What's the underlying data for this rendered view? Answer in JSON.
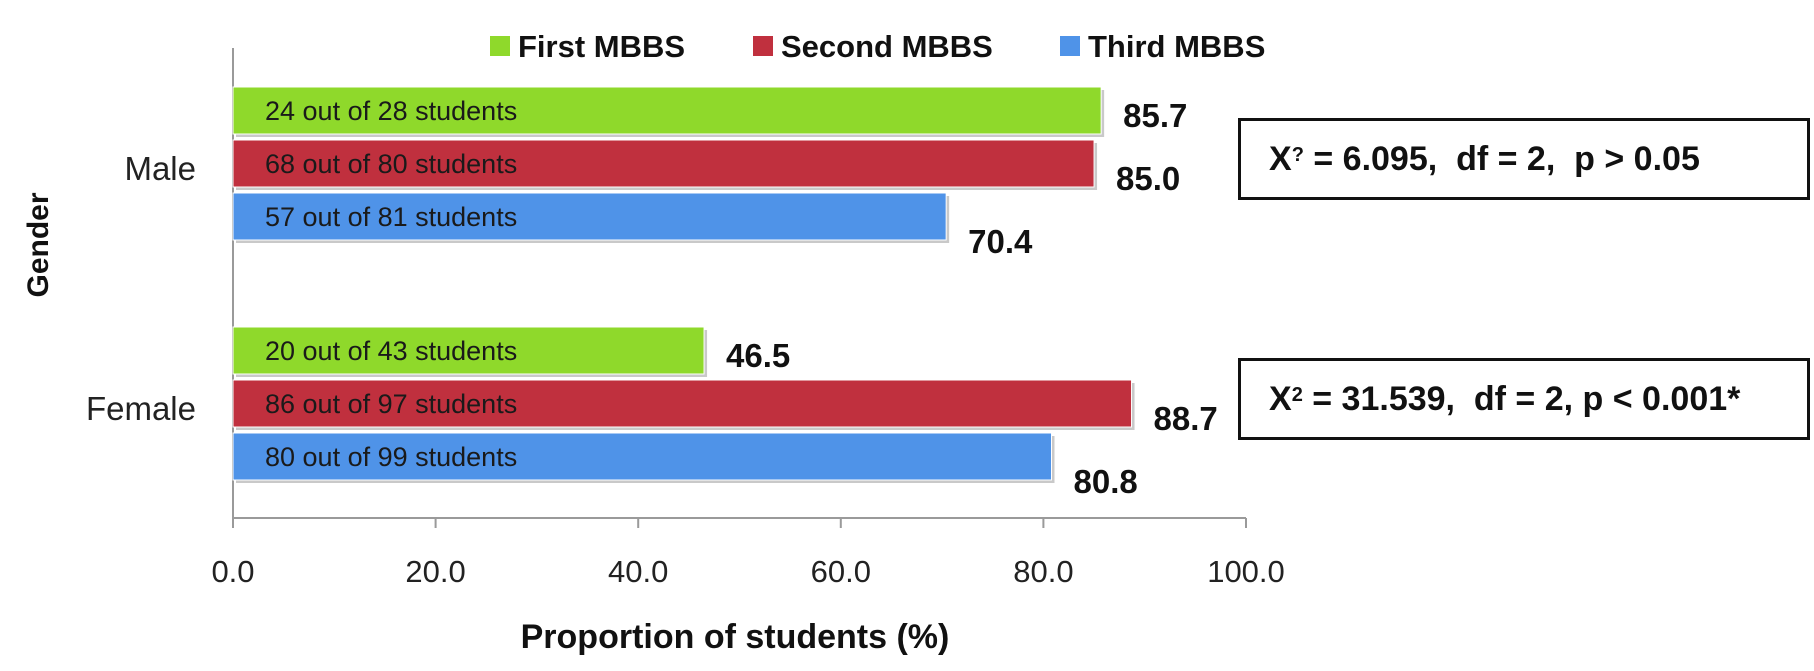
{
  "colors": {
    "first": "#8fd92b",
    "second": "#c0303e",
    "third": "#4f93e8",
    "axis": "#9a9a9a",
    "text": "#111111"
  },
  "chart_data": {
    "type": "bar",
    "orientation": "horizontal",
    "categories": [
      "Male",
      "Female"
    ],
    "series": [
      {
        "name": "First MBBS",
        "values": [
          85.7,
          46.5
        ],
        "labels": [
          "24 out of 28 students",
          "20 out of 43 students"
        ]
      },
      {
        "name": "Second MBBS",
        "values": [
          85.0,
          88.7
        ],
        "labels": [
          "68 out of 80 students",
          "86 out of  97 students"
        ]
      },
      {
        "name": "Third MBBS",
        "values": [
          70.4,
          80.8
        ],
        "labels": [
          "57 out of 81 students",
          "80 out of 99 students"
        ]
      }
    ],
    "value_labels": [
      [
        "85.7",
        "46.5"
      ],
      [
        "85.0",
        "88.7"
      ],
      [
        "70.4",
        "80.8"
      ]
    ],
    "xlabel": "Proportion of students (%)",
    "ylabel": "Gender",
    "xlim": [
      0,
      100
    ],
    "xticks": [
      "0.0",
      "20.0",
      "40.0",
      "60.0",
      "80.0",
      "100.0"
    ],
    "grid": false,
    "legend_position": "top",
    "annotations": {
      "male": {
        "x_symbol": "X",
        "sup": "?",
        "rest": " = 6.095,  df = 2,  p > 0.05"
      },
      "female": {
        "x_symbol": "X",
        "sup": "2",
        "rest": " = 31.539,  df = 2, p < 0.001*"
      }
    }
  }
}
